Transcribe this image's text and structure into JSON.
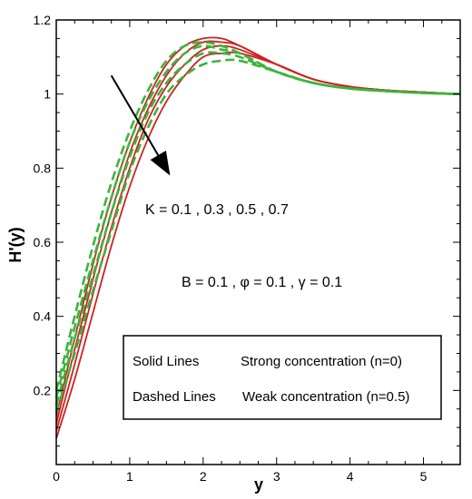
{
  "chart_data": {
    "type": "line",
    "xlabel": "y",
    "ylabel": "H'(y)",
    "xlim": [
      0,
      5.5
    ],
    "ylim": [
      0,
      1.2
    ],
    "xticks": [
      0,
      1,
      2,
      3,
      4,
      5
    ],
    "yticks": [
      0.2,
      0.4,
      0.6,
      0.8,
      1,
      1.2
    ],
    "grid": false,
    "colors": {
      "solid": "#cc2222",
      "dashed": "#3cb43c"
    },
    "series": [
      {
        "style": "solid",
        "x": [
          0,
          0.25,
          0.5,
          0.75,
          1,
          1.25,
          1.5,
          1.75,
          2,
          2.25,
          2.5,
          3,
          3.5,
          4,
          4.5,
          5,
          5.5
        ],
        "y": [
          0.13,
          0.34,
          0.54,
          0.72,
          0.87,
          0.99,
          1.08,
          1.13,
          1.15,
          1.15,
          1.13,
          1.08,
          1.04,
          1.02,
          1.01,
          1.005,
          1.0
        ]
      },
      {
        "style": "solid",
        "x": [
          0,
          0.25,
          0.5,
          0.75,
          1,
          1.25,
          1.5,
          1.75,
          2,
          2.25,
          2.5,
          3,
          3.5,
          4,
          4.5,
          5,
          5.5
        ],
        "y": [
          0.11,
          0.31,
          0.5,
          0.68,
          0.84,
          0.96,
          1.05,
          1.11,
          1.14,
          1.14,
          1.13,
          1.08,
          1.04,
          1.02,
          1.01,
          1.005,
          1.0
        ]
      },
      {
        "style": "solid",
        "x": [
          0,
          0.25,
          0.5,
          0.75,
          1,
          1.25,
          1.5,
          1.75,
          2,
          2.25,
          2.5,
          3,
          3.5,
          4,
          4.5,
          5,
          5.5
        ],
        "y": [
          0.09,
          0.27,
          0.46,
          0.64,
          0.8,
          0.93,
          1.02,
          1.08,
          1.12,
          1.13,
          1.12,
          1.08,
          1.04,
          1.02,
          1.01,
          1.005,
          1.0
        ]
      },
      {
        "style": "solid",
        "x": [
          0,
          0.25,
          0.5,
          0.75,
          1,
          1.25,
          1.5,
          1.75,
          2,
          2.25,
          2.5,
          3,
          3.5,
          4,
          4.5,
          5,
          5.5
        ],
        "y": [
          0.07,
          0.23,
          0.41,
          0.59,
          0.75,
          0.88,
          0.98,
          1.05,
          1.1,
          1.11,
          1.11,
          1.08,
          1.04,
          1.02,
          1.01,
          1.005,
          1.0
        ]
      },
      {
        "style": "dashed",
        "x": [
          0,
          0.25,
          0.5,
          0.75,
          1,
          1.25,
          1.5,
          1.75,
          2,
          2.25,
          2.5,
          3,
          3.5,
          4,
          4.5,
          5,
          5.5
        ],
        "y": [
          0.2,
          0.4,
          0.59,
          0.76,
          0.9,
          1.01,
          1.09,
          1.13,
          1.14,
          1.13,
          1.11,
          1.06,
          1.03,
          1.015,
          1.008,
          1.003,
          1.0
        ]
      },
      {
        "style": "dashed",
        "x": [
          0,
          0.25,
          0.5,
          0.75,
          1,
          1.25,
          1.5,
          1.75,
          2,
          2.25,
          2.5,
          3,
          3.5,
          4,
          4.5,
          5,
          5.5
        ],
        "y": [
          0.18,
          0.37,
          0.55,
          0.72,
          0.87,
          0.98,
          1.06,
          1.11,
          1.13,
          1.12,
          1.11,
          1.06,
          1.03,
          1.015,
          1.008,
          1.003,
          1.0
        ]
      },
      {
        "style": "dashed",
        "x": [
          0,
          0.25,
          0.5,
          0.75,
          1,
          1.25,
          1.5,
          1.75,
          2,
          2.25,
          2.5,
          3,
          3.5,
          4,
          4.5,
          5,
          5.5
        ],
        "y": [
          0.16,
          0.34,
          0.51,
          0.68,
          0.83,
          0.95,
          1.03,
          1.08,
          1.11,
          1.11,
          1.1,
          1.06,
          1.03,
          1.015,
          1.008,
          1.003,
          1.0
        ]
      },
      {
        "style": "dashed",
        "x": [
          0,
          0.25,
          0.5,
          0.75,
          1,
          1.25,
          1.5,
          1.75,
          2,
          2.25,
          2.5,
          3,
          3.5,
          4,
          4.5,
          5,
          5.5
        ],
        "y": [
          0.14,
          0.3,
          0.47,
          0.63,
          0.79,
          0.91,
          1.0,
          1.05,
          1.08,
          1.09,
          1.09,
          1.06,
          1.03,
          1.015,
          1.008,
          1.003,
          1.0
        ]
      }
    ],
    "annotations": [
      "K = 0.1 , 0.3 , 0.5 , 0.7",
      "B = 0.1 , φ = 0.1 , γ = 0.1"
    ],
    "legend": {
      "placement": "bottom-center",
      "entries": [
        {
          "label": "Solid Lines",
          "description": "Strong concentration (n=0)"
        },
        {
          "label": "Dashed Lines",
          "description": "Weak concentration (n=0.5)"
        }
      ]
    },
    "arrow": {
      "from": [
        0.75,
        1.05
      ],
      "to": [
        1.55,
        0.78
      ]
    }
  }
}
